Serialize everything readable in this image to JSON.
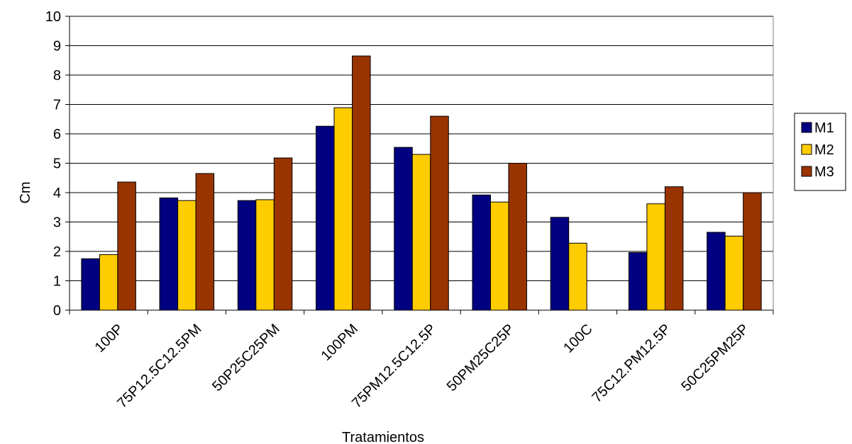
{
  "chart_data": {
    "type": "bar",
    "title": "",
    "xlabel": "Tratamientos",
    "ylabel": "Cm",
    "ylim": [
      0,
      10
    ],
    "yticks": [
      0,
      1,
      2,
      3,
      4,
      5,
      6,
      7,
      8,
      9,
      10
    ],
    "grid": true,
    "legend_position": "right",
    "categories": [
      "100P",
      "75P12.5C12.5PM",
      "50P25C25PM",
      "100PM",
      "75PM12.5C12.5P",
      "50PM25C25P",
      "100C",
      "75C12.PM12.5P",
      "50C25PM25P"
    ],
    "series": [
      {
        "name": "M1",
        "color": "#000080",
        "values": [
          1.75,
          3.82,
          3.73,
          6.26,
          5.54,
          3.92,
          3.16,
          1.96,
          2.65
        ]
      },
      {
        "name": "M2",
        "color": "#FFCC00",
        "values": [
          1.89,
          3.73,
          3.76,
          6.89,
          5.3,
          3.68,
          2.28,
          3.62,
          2.52
        ]
      },
      {
        "name": "M3",
        "color": "#993300",
        "values": [
          4.36,
          4.65,
          5.18,
          8.65,
          6.6,
          5.0,
          0,
          4.2,
          4.0
        ]
      }
    ]
  }
}
